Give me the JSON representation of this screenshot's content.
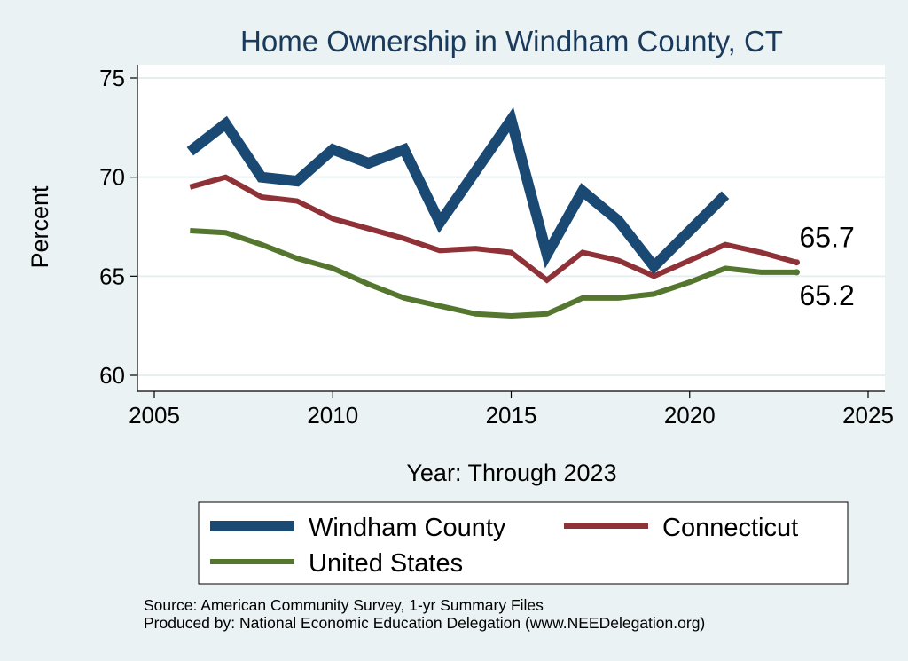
{
  "chart_data": {
    "type": "line",
    "title": "Home Ownership in Windham County, CT",
    "xlabel": "Year: Through 2023",
    "ylabel": "Percent",
    "xlim": [
      2005,
      2025
    ],
    "ylim": [
      60,
      75
    ],
    "xticks": [
      2005,
      2010,
      2015,
      2020,
      2025
    ],
    "yticks": [
      60,
      65,
      70,
      75
    ],
    "grid": "horizontal",
    "legend_position": "bottom",
    "series": [
      {
        "name": "Windham County",
        "color": "#1a4a74",
        "x": [
          2006,
          2007,
          2008,
          2009,
          2010,
          2011,
          2012,
          2013,
          2014,
          2015,
          2016,
          2017,
          2018,
          2019,
          2020,
          2021
        ],
        "values": [
          71.3,
          72.7,
          70.0,
          69.8,
          71.4,
          70.7,
          71.4,
          67.7,
          70.3,
          72.9,
          66.1,
          69.3,
          67.8,
          65.5,
          67.3,
          69.1
        ]
      },
      {
        "name": "Connecticut",
        "color": "#8f3238",
        "x": [
          2006,
          2007,
          2008,
          2009,
          2010,
          2011,
          2012,
          2013,
          2014,
          2015,
          2016,
          2017,
          2018,
          2019,
          2020,
          2021,
          2022,
          2023
        ],
        "values": [
          69.5,
          70.0,
          69.0,
          68.8,
          67.9,
          67.4,
          66.9,
          66.3,
          66.4,
          66.2,
          64.8,
          66.2,
          65.8,
          65.0,
          65.8,
          66.6,
          66.2,
          65.7
        ]
      },
      {
        "name": "United States",
        "color": "#55762e",
        "x": [
          2006,
          2007,
          2008,
          2009,
          2010,
          2011,
          2012,
          2013,
          2014,
          2015,
          2016,
          2017,
          2018,
          2019,
          2020,
          2021,
          2022,
          2023
        ],
        "values": [
          67.3,
          67.2,
          66.6,
          65.9,
          65.4,
          64.6,
          63.9,
          63.5,
          63.1,
          63.0,
          63.1,
          63.9,
          63.9,
          64.1,
          64.7,
          65.4,
          65.2,
          65.2
        ]
      }
    ],
    "annotations": [
      {
        "text": "65.7",
        "series": "Connecticut"
      },
      {
        "text": "65.2",
        "series": "United States"
      }
    ]
  },
  "notes": {
    "source": "Source: American Community Survey, 1-yr Summary Files",
    "produced_by": "Produced by: National Economic Education Delegation (www.NEEDelegation.org)"
  }
}
